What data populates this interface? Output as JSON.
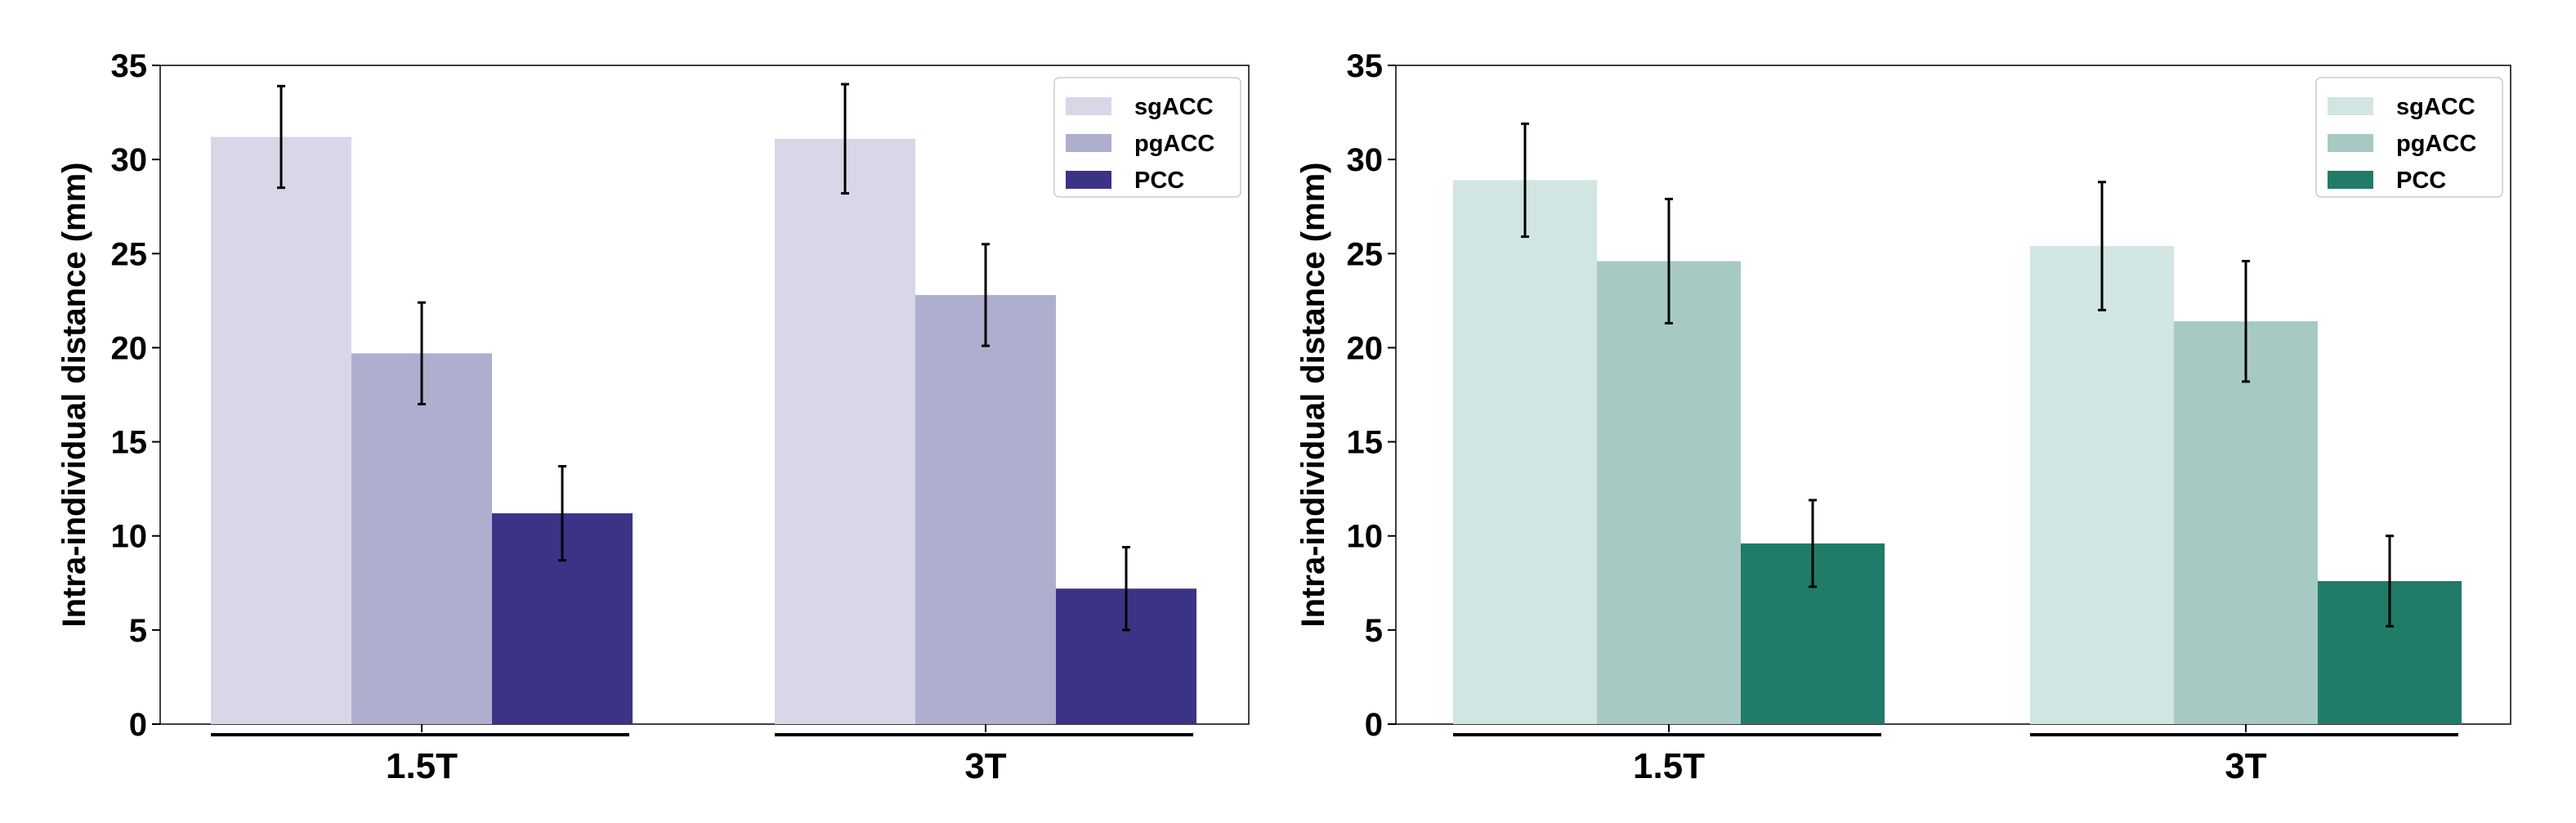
{
  "chart_data": [
    {
      "type": "bar",
      "categories": [
        "1.5T",
        "3T"
      ],
      "ylabel": "Intra-individual distance (mm)",
      "xlabel": "",
      "ylim": [
        0,
        35
      ],
      "yticks": [
        0,
        5,
        10,
        15,
        20,
        25,
        30,
        35
      ],
      "legend_position": "top-right",
      "series": [
        {
          "name": "sgACC",
          "color": "#d8d7e8",
          "values": [
            31.2,
            31.1
          ],
          "errors": [
            2.7,
            2.9
          ]
        },
        {
          "name": "pgACC",
          "color": "#aeaecf",
          "values": [
            19.7,
            22.8
          ],
          "errors": [
            2.7,
            2.7
          ]
        },
        {
          "name": "PCC",
          "color": "#3b3486",
          "values": [
            11.2,
            7.2
          ],
          "errors": [
            2.5,
            2.2
          ]
        }
      ]
    },
    {
      "type": "bar",
      "categories": [
        "1.5T",
        "3T"
      ],
      "ylabel": "Intra-individual distance (mm)",
      "xlabel": "",
      "ylim": [
        0,
        35
      ],
      "yticks": [
        0,
        5,
        10,
        15,
        20,
        25,
        30,
        35
      ],
      "legend_position": "top-right",
      "series": [
        {
          "name": "sgACC",
          "color": "#d1e5e2",
          "values": [
            28.9,
            25.4
          ],
          "errors": [
            3.0,
            3.4
          ]
        },
        {
          "name": "pgACC",
          "color": "#a6cac3",
          "values": [
            24.6,
            21.4
          ],
          "errors": [
            3.3,
            3.2
          ]
        },
        {
          "name": "PCC",
          "color": "#217b69",
          "values": [
            9.6,
            7.6
          ],
          "errors": [
            2.3,
            2.4
          ]
        }
      ]
    }
  ]
}
